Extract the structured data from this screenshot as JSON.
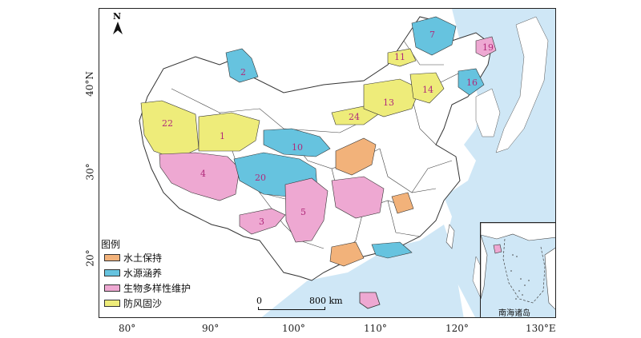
{
  "map": {
    "north_label": "N",
    "lat_labels": [
      "40°N",
      "30°",
      "20°"
    ],
    "lon_labels": [
      "80°",
      "90°",
      "100°",
      "110°",
      "120°",
      "130°E"
    ],
    "scale": {
      "zero": "0",
      "distance": "800 km"
    },
    "inset_label": "南海诸岛",
    "colors": {
      "sea": "#cfe7f6",
      "land": "#ffffff",
      "border": "#333333",
      "soil": "#f2b27a",
      "water": "#66c3df",
      "bio": "#eea8d2",
      "wind": "#eeec7a"
    }
  },
  "legend": {
    "title": "图例",
    "items": [
      {
        "label": "水土保持",
        "color": "#f2b27a"
      },
      {
        "label": "水源涵养",
        "color": "#66c3df"
      },
      {
        "label": "生物多样性维护",
        "color": "#eea8d2"
      },
      {
        "label": "防风固沙",
        "color": "#eeec7a"
      }
    ]
  },
  "regions": [
    {
      "id": "1",
      "type": "wind"
    },
    {
      "id": "2",
      "type": "water"
    },
    {
      "id": "3",
      "type": "bio"
    },
    {
      "id": "4",
      "type": "bio"
    },
    {
      "id": "5",
      "type": "bio"
    },
    {
      "id": "7",
      "type": "water"
    },
    {
      "id": "10",
      "type": "water"
    },
    {
      "id": "11",
      "type": "wind"
    },
    {
      "id": "13",
      "type": "wind"
    },
    {
      "id": "14",
      "type": "wind"
    },
    {
      "id": "16",
      "type": "water"
    },
    {
      "id": "19",
      "type": "bio"
    },
    {
      "id": "20",
      "type": "water"
    },
    {
      "id": "22",
      "type": "wind"
    },
    {
      "id": "24",
      "type": "wind"
    }
  ]
}
